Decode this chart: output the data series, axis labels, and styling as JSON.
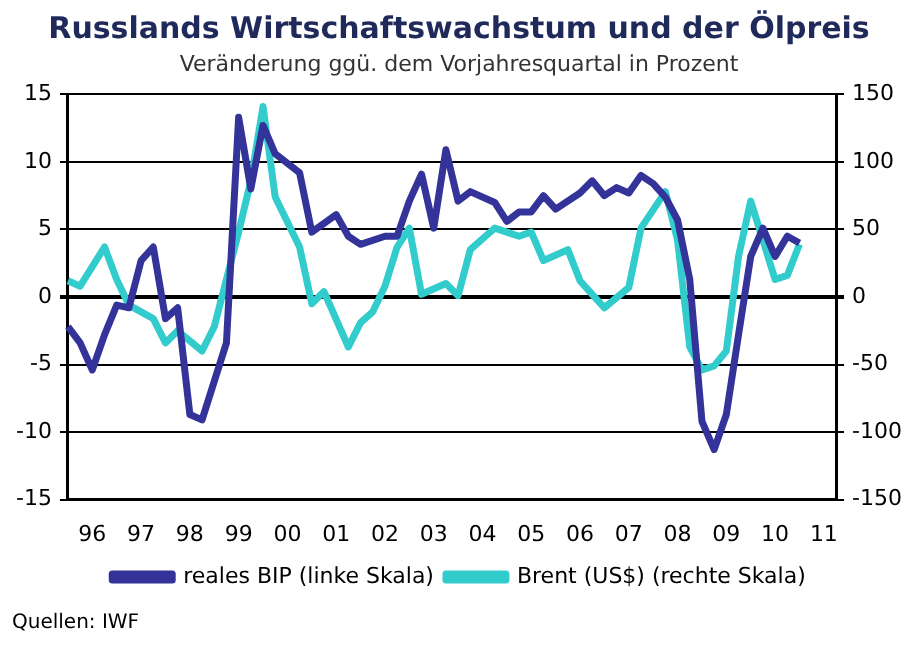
{
  "chart_data": {
    "type": "line",
    "title": "Russlands Wirtschaftswachstum und der Ölpreis",
    "subtitle": "Veränderung ggü. dem Vorjahresquartal in Prozent",
    "annotations": [
      "Quellen: IWF"
    ],
    "categories": [
      null,
      null,
      "96",
      null,
      null,
      null,
      "97",
      null,
      null,
      null,
      "98",
      null,
      null,
      null,
      "99",
      null,
      null,
      null,
      "00",
      null,
      null,
      null,
      "01",
      null,
      null,
      null,
      "02",
      null,
      null,
      null,
      "03",
      null,
      null,
      null,
      "04",
      null,
      null,
      null,
      "05",
      null,
      null,
      null,
      "06",
      null,
      null,
      null,
      "07",
      null,
      null,
      null,
      "08",
      null,
      null,
      null,
      "09",
      null,
      null,
      null,
      "10",
      null,
      null,
      null,
      "11",
      null
    ],
    "ylim": [
      -15,
      15
    ],
    "yticks": [
      -15,
      -10,
      -5,
      0,
      5,
      10,
      15
    ],
    "y2lim": [
      -150,
      150
    ],
    "y2ticks": [
      -150,
      -100,
      -50,
      0,
      50,
      100,
      150
    ],
    "grid": "y",
    "legend": "bottom",
    "marker": "none",
    "line_style": "solid",
    "series": [
      {
        "name": "reales BIP (linke Skala)",
        "color": "#333399",
        "values": [
          -2.2,
          -3.4,
          -5.4,
          -2.8,
          -0.6,
          -0.8,
          2.7,
          3.7,
          -1.6,
          -0.8,
          -8.7,
          -9.1,
          null,
          -3.4,
          13.3,
          8.0,
          12.7,
          10.6,
          null,
          9.2,
          4.8,
          null,
          6.1,
          4.5,
          3.9,
          null,
          4.5,
          4.5,
          7.1,
          9.1,
          5.1,
          10.9,
          7.1,
          7.8,
          null,
          7.0,
          5.6,
          6.3,
          6.3,
          7.5,
          6.5,
          null,
          7.7,
          8.6,
          7.5,
          8.1,
          7.7,
          9.0,
          8.4,
          7.4,
          5.7,
          1.3,
          -9.2,
          -11.3,
          -8.7,
          -2.8,
          3.0,
          5.1,
          3.0,
          4.5,
          4.0,
          null,
          null,
          null
        ]
      },
      {
        "name": "Brent (US$) (rechte Skala)",
        "color": "#33cccc",
        "axis": "y2",
        "values": [
          12,
          8,
          null,
          37,
          13,
          -6,
          null,
          -16,
          -34,
          -25,
          null,
          -40,
          -22,
          null,
          48,
          86,
          141,
          74,
          null,
          37,
          -5,
          4,
          null,
          -37,
          -19,
          -11,
          8,
          37,
          51,
          2,
          null,
          10,
          1,
          35,
          null,
          51,
          48,
          45,
          48,
          27,
          null,
          35,
          12,
          null,
          -8,
          null,
          7,
          51,
          null,
          78,
          42,
          -37,
          -54,
          -51,
          -40,
          30,
          71,
          42,
          13,
          16,
          39,
          null,
          null,
          null
        ]
      }
    ]
  }
}
